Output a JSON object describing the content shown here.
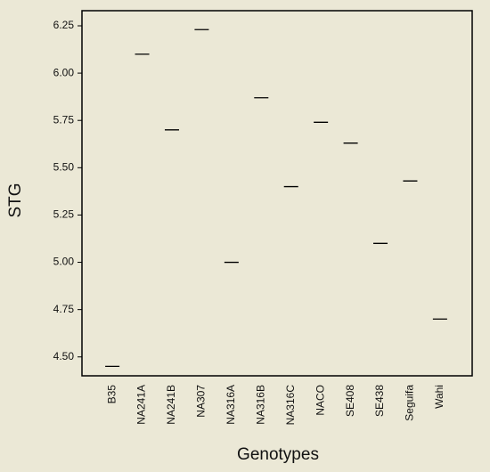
{
  "chart_data": {
    "type": "point",
    "x_label": "Genotypes",
    "y_label": "STG",
    "categories": [
      "B35",
      "NA241A",
      "NA241B",
      "NA307",
      "NA316A",
      "NA316B",
      "NA316C",
      "NACO",
      "SE408",
      "SE438",
      "Seguifa",
      "Wahi"
    ],
    "values": [
      4.45,
      6.1,
      5.7,
      6.23,
      5.0,
      5.87,
      5.4,
      5.74,
      5.63,
      5.1,
      5.43,
      4.7
    ],
    "color": "#000000",
    "ylim": [
      4.4,
      6.33
    ],
    "yticks": [
      {
        "value": 4.5,
        "label": "4.50"
      },
      4.75,
      {
        "value": 5,
        "label": "5.00"
      },
      5.25,
      {
        "value": 5.5,
        "label": "5.50"
      },
      5.75,
      {
        "value": 6,
        "label": "6.00"
      },
      6.25
    ],
    "grid": false
  }
}
